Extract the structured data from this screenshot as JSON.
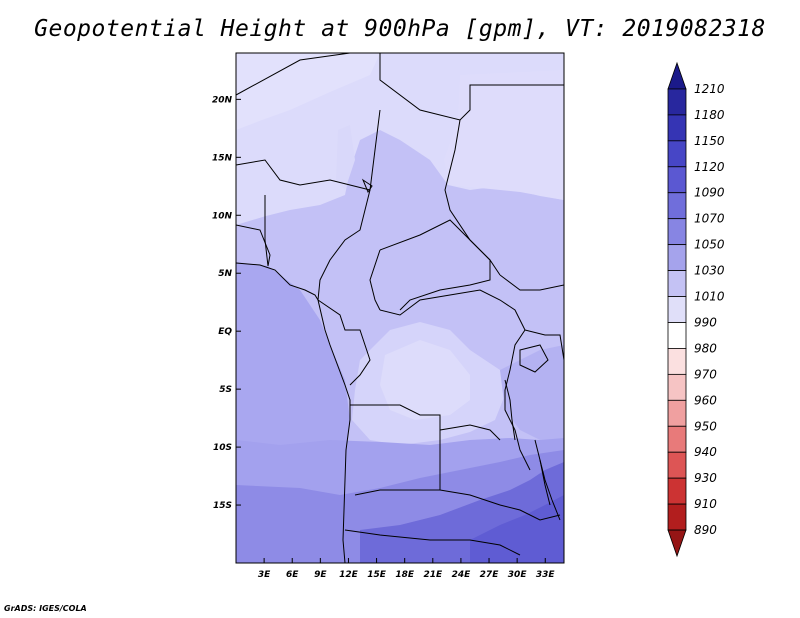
{
  "title": "Geopotential Height at 900hPa [gpm], VT: 2019082318",
  "credit": "GrADS: IGES/COLA",
  "chart_data": {
    "type": "filled-contour-map",
    "variable": "Geopotential Height",
    "level": "900hPa",
    "units": "gpm",
    "valid_time": "2019082318",
    "lon_range": [
      0,
      35
    ],
    "lat_range": [
      -20,
      24
    ],
    "lon_ticks": [
      "3E",
      "6E",
      "9E",
      "12E",
      "15E",
      "18E",
      "21E",
      "24E",
      "27E",
      "30E",
      "33E"
    ],
    "lon_tick_values": [
      3,
      6,
      9,
      12,
      15,
      18,
      21,
      24,
      27,
      30,
      33
    ],
    "lat_ticks": [
      "20N",
      "15N",
      "10N",
      "5N",
      "EQ",
      "5S",
      "10S",
      "15S"
    ],
    "lat_tick_values": [
      20,
      15,
      10,
      5,
      0,
      -5,
      -10,
      -15
    ],
    "colorbar": {
      "levels": [
        "1210",
        "1180",
        "1150",
        "1120",
        "1090",
        "1070",
        "1050",
        "1030",
        "1010",
        "990",
        "980",
        "970",
        "960",
        "950",
        "940",
        "930",
        "910",
        "890"
      ],
      "colors": [
        "#1b1a8a",
        "#28279e",
        "#3534b4",
        "#4746c6",
        "#5b58d2",
        "#706edb",
        "#8785e3",
        "#a5a3ec",
        "#c4c2f4",
        "#e0dff9",
        "#ffffff",
        "#fbe0e0",
        "#f6c4c4",
        "#f0a0a0",
        "#e87a7a",
        "#dd5555",
        "#cc3333",
        "#b21e1e",
        "#951515"
      ]
    },
    "region_fills": [
      {
        "region": "north-west",
        "value_band": "1010-1030",
        "color": "#d8d7fb"
      },
      {
        "region": "central-east",
        "value_band": "1030-1050",
        "color": "#c1bff6"
      },
      {
        "region": "west-coast",
        "value_band": "1050-1070",
        "color": "#a7a5ef"
      },
      {
        "region": "congo-basin",
        "value_band": "1010-1030",
        "color": "#d6d5fa"
      },
      {
        "region": "south",
        "value_band": "1070-1090",
        "color": "#8f8de6"
      },
      {
        "region": "south-east",
        "value_band": "1090-1120",
        "color": "#6f6cd9"
      }
    ]
  }
}
